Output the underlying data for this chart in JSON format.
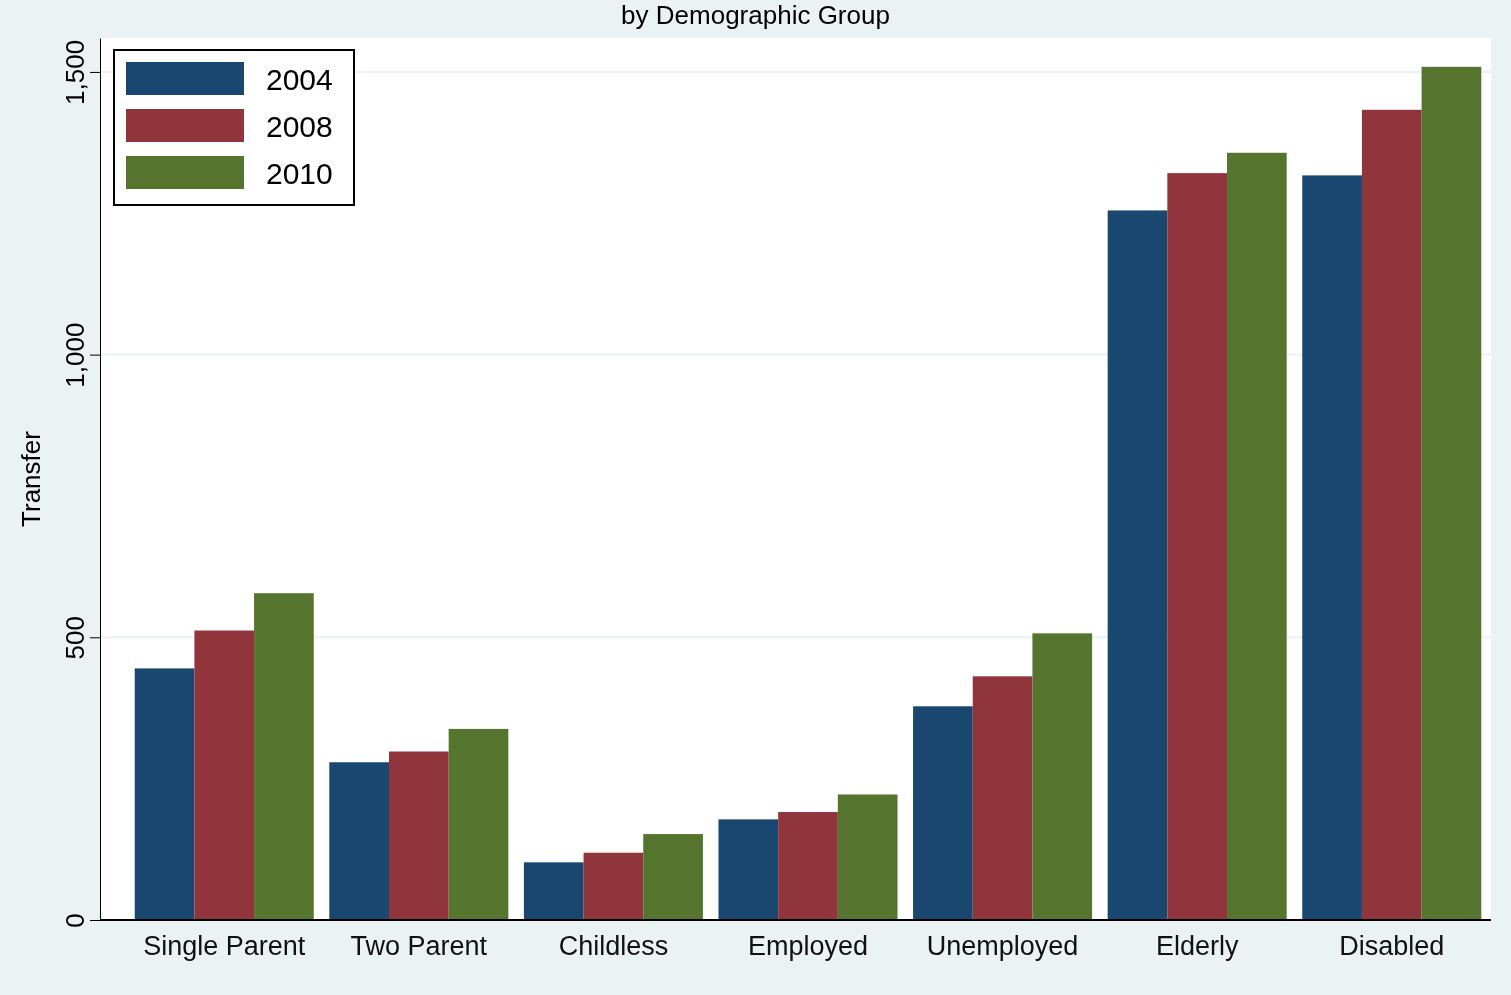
{
  "chart_data": {
    "type": "bar",
    "title": "by Demographic Group",
    "ylabel": "Transfer",
    "categories": [
      "Single Parent",
      "Two Parent",
      "Childless",
      "Employed",
      "Unemployed",
      "Elderly",
      "Disabled"
    ],
    "series": [
      {
        "name": "2004",
        "color": "#1a476f",
        "values": [
          445,
          279,
          102,
          178,
          378,
          1255,
          1317
        ]
      },
      {
        "name": "2008",
        "color": "#90353b",
        "values": [
          512,
          298,
          119,
          191,
          431,
          1321,
          1433
        ]
      },
      {
        "name": "2010",
        "color": "#55752f",
        "values": [
          578,
          338,
          152,
          222,
          507,
          1357,
          1509
        ]
      }
    ],
    "ylim": [
      0,
      1560
    ],
    "yticks": [
      0,
      500,
      {
        "value": 1000,
        "label": "1,000"
      },
      {
        "value": 1500,
        "label": "1,500"
      }
    ],
    "grid": "y",
    "legend": "top left"
  }
}
